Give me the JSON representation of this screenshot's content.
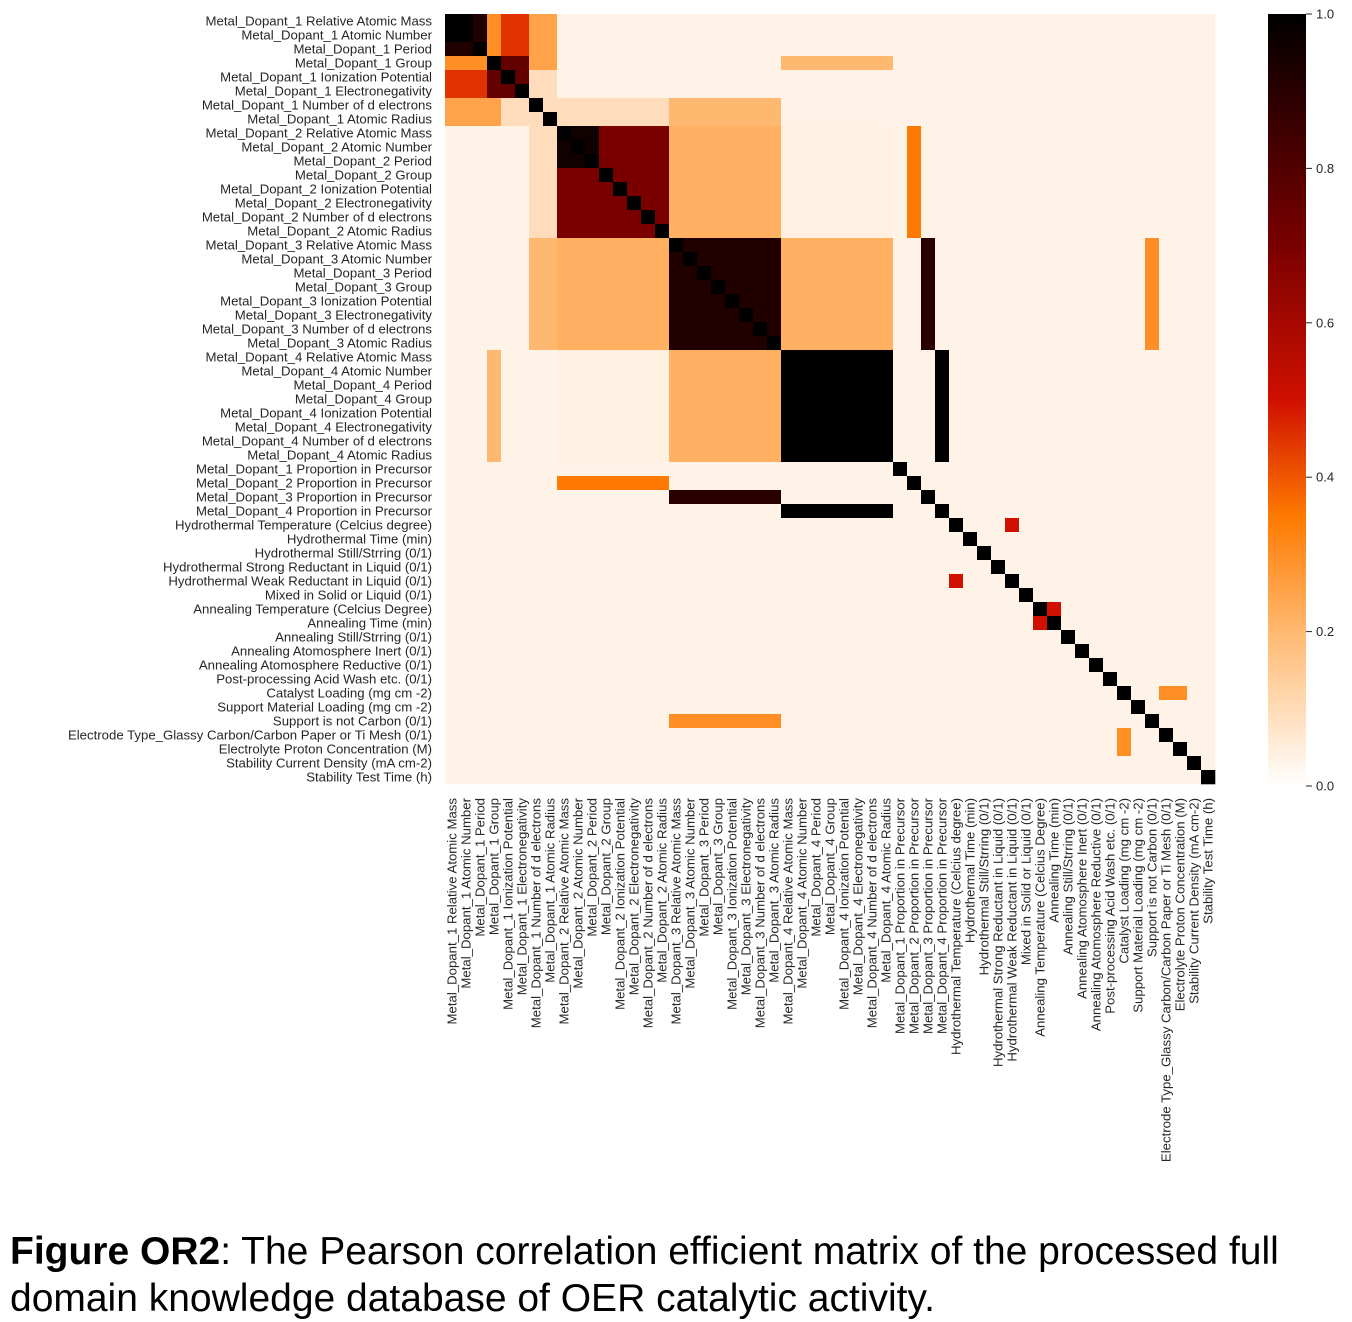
{
  "caption": {
    "label": "Figure OR2",
    "text": ": The Pearson correlation efficient matrix of the processed full domain knowledge database of OER catalytic activity."
  },
  "chart_data": {
    "type": "heatmap",
    "title": "",
    "xlabel": "",
    "ylabel": "",
    "colormap": "gist_heat_r",
    "colors": [
      "#ffffff",
      "#ff9a1a",
      "#ff7a00",
      "#c80000",
      "#5a0000",
      "#000000"
    ],
    "vmin": 0.0,
    "vmax": 1.0,
    "colorbar_ticks": [
      "0.0",
      "0.2",
      "0.4",
      "0.6",
      "0.8",
      "1.0"
    ],
    "labels": [
      "Metal_Dopant_1 Relative Atomic Mass",
      "Metal_Dopant_1 Atomic Number",
      "Metal_Dopant_1 Period",
      "Metal_Dopant_1 Group",
      "Metal_Dopant_1 Ionization Potential",
      "Metal_Dopant_1 Electronegativity",
      "Metal_Dopant_1 Number of d electrons",
      "Metal_Dopant_1 Atomic Radius",
      "Metal_Dopant_2 Relative Atomic Mass",
      "Metal_Dopant_2 Atomic Number",
      "Metal_Dopant_2 Period",
      "Metal_Dopant_2 Group",
      "Metal_Dopant_2 Ionization Potential",
      "Metal_Dopant_2 Electronegativity",
      "Metal_Dopant_2 Number of d electrons",
      "Metal_Dopant_2 Atomic Radius",
      "Metal_Dopant_3 Relative Atomic Mass",
      "Metal_Dopant_3 Atomic Number",
      "Metal_Dopant_3 Period",
      "Metal_Dopant_3 Group",
      "Metal_Dopant_3 Ionization Potential",
      "Metal_Dopant_3 Electronegativity",
      "Metal_Dopant_3 Number of d electrons",
      "Metal_Dopant_3 Atomic Radius",
      "Metal_Dopant_4 Relative Atomic Mass",
      "Metal_Dopant_4 Atomic Number",
      "Metal_Dopant_4 Period",
      "Metal_Dopant_4 Group",
      "Metal_Dopant_4 Ionization Potential",
      "Metal_Dopant_4 Electronegativity",
      "Metal_Dopant_4 Number of d electrons",
      "Metal_Dopant_4 Atomic Radius",
      "Metal_Dopant_1 Proportion in Precursor",
      "Metal_Dopant_2 Proportion in Precursor",
      "Metal_Dopant_3 Proportion in Precursor",
      "Metal_Dopant_4 Proportion in Precursor",
      "Hydrothermal Temperature (Celcius degree)",
      "Hydrothermal Time (min)",
      "Hydrothermal Still/Strring (0/1)",
      "Hydrothermal Strong Reductant in Liquid (0/1)",
      "Hydrothermal Weak Reductant in Liquid (0/1)",
      "Mixed in Solid or Liquid (0/1)",
      "Annealing Temperature (Celcius Degree)",
      "Annealing Time (min)",
      "Annealing Still/Strring (0/1)",
      "Annealing Atomosphere Inert (0/1)",
      "Annealing Atomosphere Reductive (0/1)",
      "Post-processing Acid Wash etc. (0/1)",
      "Catalyst Loading (mg cm -2)",
      "Support Material Loading (mg cm -2)",
      "Support is not Carbon (0/1)",
      "Electrode Type_Glassy Carbon/Carbon Paper or Ti Mesh (0/1)",
      "Electrolyte Proton Concentration (M)",
      "Stability Current Density (mA cm-2)",
      "Stability Test Time (h)"
    ],
    "blocks": [
      {
        "rows": [
          0,
          7
        ],
        "cols": [
          0,
          7
        ],
        "value": 0.5
      },
      {
        "rows": [
          0,
          1
        ],
        "cols": [
          0,
          1
        ],
        "value": 1.0
      },
      {
        "rows": [
          0,
          1
        ],
        "cols": [
          2,
          2
        ],
        "value": 0.9
      },
      {
        "rows": [
          2,
          2
        ],
        "cols": [
          0,
          1
        ],
        "value": 0.9
      },
      {
        "rows": [
          0,
          2
        ],
        "cols": [
          3,
          3
        ],
        "value": 0.3
      },
      {
        "rows": [
          0,
          2
        ],
        "cols": [
          4,
          5
        ],
        "value": 0.45
      },
      {
        "rows": [
          3,
          3
        ],
        "cols": [
          0,
          2
        ],
        "value": 0.3
      },
      {
        "rows": [
          4,
          5
        ],
        "cols": [
          0,
          2
        ],
        "value": 0.45
      },
      {
        "rows": [
          3,
          5
        ],
        "cols": [
          3,
          5
        ],
        "value": 0.75
      },
      {
        "rows": [
          6,
          7
        ],
        "cols": [
          0,
          3
        ],
        "value": 0.25
      },
      {
        "rows": [
          0,
          3
        ],
        "cols": [
          6,
          7
        ],
        "value": 0.25
      },
      {
        "rows": [
          6,
          7
        ],
        "cols": [
          4,
          7
        ],
        "value": 0.1
      },
      {
        "rows": [
          4,
          5
        ],
        "cols": [
          6,
          7
        ],
        "value": 0.1
      },
      {
        "rows": [
          8,
          15
        ],
        "cols": [
          8,
          15
        ],
        "value": 0.7
      },
      {
        "rows": [
          8,
          10
        ],
        "cols": [
          8,
          10
        ],
        "value": 0.95
      },
      {
        "rows": [
          16,
          23
        ],
        "cols": [
          16,
          23
        ],
        "value": 0.9
      },
      {
        "rows": [
          16,
          23
        ],
        "cols": [
          8,
          15
        ],
        "value": 0.22
      },
      {
        "rows": [
          8,
          15
        ],
        "cols": [
          16,
          23
        ],
        "value": 0.22
      },
      {
        "rows": [
          24,
          31
        ],
        "cols": [
          24,
          31
        ],
        "value": 1.0
      },
      {
        "rows": [
          24,
          31
        ],
        "cols": [
          16,
          23
        ],
        "value": 0.22
      },
      {
        "rows": [
          16,
          23
        ],
        "cols": [
          24,
          31
        ],
        "value": 0.22
      },
      {
        "rows": [
          24,
          31
        ],
        "cols": [
          8,
          15
        ],
        "value": 0.05
      },
      {
        "rows": [
          8,
          15
        ],
        "cols": [
          24,
          31
        ],
        "value": 0.05
      },
      {
        "rows": [
          16,
          23
        ],
        "cols": [
          6,
          7
        ],
        "value": 0.2
      },
      {
        "rows": [
          6,
          7
        ],
        "cols": [
          16,
          23
        ],
        "value": 0.2
      },
      {
        "rows": [
          8,
          15
        ],
        "cols": [
          6,
          7
        ],
        "value": 0.1
      },
      {
        "rows": [
          6,
          7
        ],
        "cols": [
          8,
          15
        ],
        "value": 0.1
      },
      {
        "rows": [
          24,
          31
        ],
        "cols": [
          3,
          3
        ],
        "value": 0.2
      },
      {
        "rows": [
          3,
          3
        ],
        "cols": [
          24,
          31
        ],
        "value": 0.2
      },
      {
        "rows": [
          24,
          31
        ],
        "cols": [
          35,
          35
        ],
        "value": 1.0
      },
      {
        "rows": [
          35,
          35
        ],
        "cols": [
          24,
          31
        ],
        "value": 1.0
      },
      {
        "rows": [
          16,
          23
        ],
        "cols": [
          34,
          34
        ],
        "value": 0.88
      },
      {
        "rows": [
          34,
          34
        ],
        "cols": [
          16,
          23
        ],
        "value": 0.88
      },
      {
        "rows": [
          8,
          15
        ],
        "cols": [
          33,
          33
        ],
        "value": 0.35
      },
      {
        "rows": [
          33,
          33
        ],
        "cols": [
          8,
          15
        ],
        "value": 0.35
      },
      {
        "rows": [
          36,
          36
        ],
        "cols": [
          40,
          40
        ],
        "value": 0.5
      },
      {
        "rows": [
          40,
          40
        ],
        "cols": [
          36,
          36
        ],
        "value": 0.5
      },
      {
        "rows": [
          42,
          42
        ],
        "cols": [
          43,
          43
        ],
        "value": 0.5
      },
      {
        "rows": [
          43,
          43
        ],
        "cols": [
          42,
          42
        ],
        "value": 0.5
      },
      {
        "rows": [
          16,
          23
        ],
        "cols": [
          50,
          50
        ],
        "value": 0.3
      },
      {
        "rows": [
          50,
          50
        ],
        "cols": [
          16,
          23
        ],
        "value": 0.3
      },
      {
        "rows": [
          48,
          48
        ],
        "cols": [
          51,
          52
        ],
        "value": 0.3
      },
      {
        "rows": [
          51,
          52
        ],
        "cols": [
          48,
          48
        ],
        "value": 0.3
      }
    ],
    "diagonal": 1.0
  }
}
